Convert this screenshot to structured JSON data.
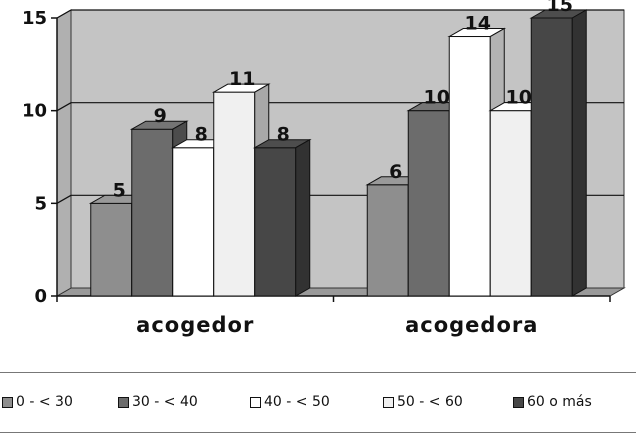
{
  "chart_data": {
    "type": "bar",
    "title": "",
    "xlabel": "",
    "ylabel": "",
    "ylim": [
      0,
      15
    ],
    "yticks": [
      0,
      5,
      10,
      15
    ],
    "ytick_labels": [
      "0",
      "5",
      "10",
      "15"
    ],
    "categories": [
      "acogedor",
      "acogedora"
    ],
    "series": [
      {
        "name": "0 - < 30",
        "values": [
          5,
          6
        ],
        "labels": [
          "5",
          "6"
        ],
        "color": "#8e8e8e"
      },
      {
        "name": "30 - < 40",
        "values": [
          9,
          10
        ],
        "labels": [
          "9",
          "10"
        ],
        "color": "#6c6c6c"
      },
      {
        "name": "40 - < 50",
        "values": [
          8,
          14
        ],
        "labels": [
          "8",
          "14"
        ],
        "color": "#ffffff"
      },
      {
        "name": "50 - < 60",
        "values": [
          11,
          10
        ],
        "labels": [
          "11",
          "10"
        ],
        "color": "#f0f0f0"
      },
      {
        "name": "60 o más",
        "values": [
          8,
          15
        ],
        "labels": [
          "8",
          "15"
        ],
        "color": "#474747"
      }
    ],
    "grid": true,
    "legend_position": "bottom"
  },
  "legend_labels": [
    "0 - < 30",
    "30 - < 40",
    "40 - < 50",
    "50 - < 60",
    "60 o más"
  ]
}
